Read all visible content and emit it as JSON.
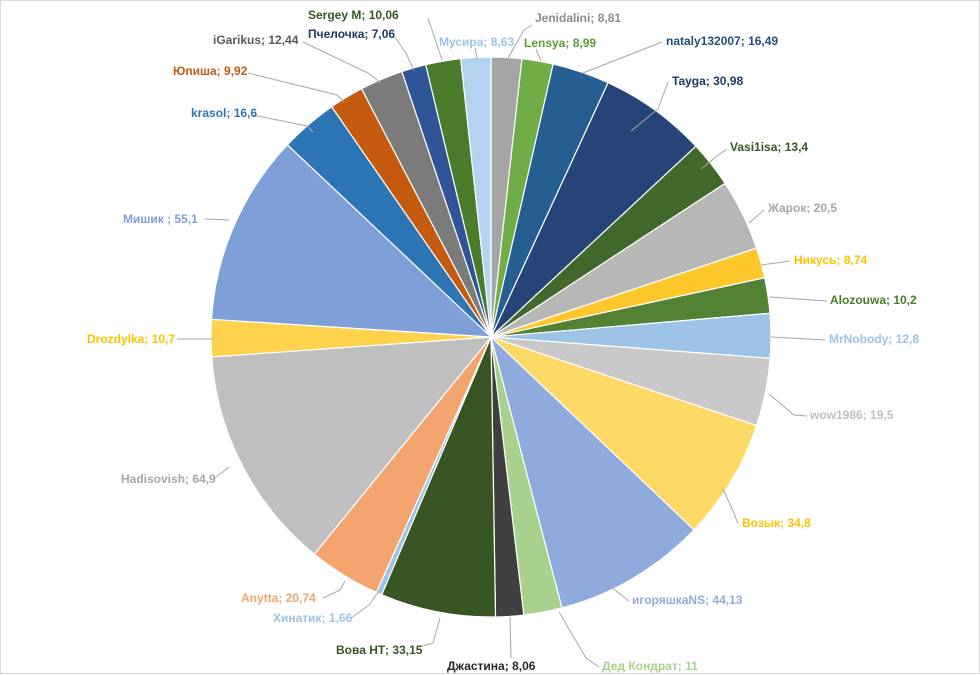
{
  "chart_data": {
    "type": "pie",
    "title": "",
    "start_angle_deg": 0,
    "direction": "clockwise",
    "slices": [
      {
        "name": "Jenidalini",
        "value": 8.81,
        "label": "8,81",
        "color": "#a5a5a5"
      },
      {
        "name": "Lensya",
        "value": 8.99,
        "label": "8,99",
        "color": "#70ad47"
      },
      {
        "name": "nataly132007",
        "value": 16.49,
        "label": "16,49",
        "color": "#255e91"
      },
      {
        "name": "Tayga",
        "value": 30.98,
        "label": "30,98",
        "color": "#264478"
      },
      {
        "name": "Vasi1isa",
        "value": 13.4,
        "label": "13,4",
        "color": "#43682b"
      },
      {
        "name": "Жарок",
        "value": 20.5,
        "label": "20,5",
        "color": "#b7b7b7"
      },
      {
        "name": "Никусь",
        "value": 8.74,
        "label": "8,74",
        "color": "#ffc72c"
      },
      {
        "name": "Alozouwa",
        "value": 10.2,
        "label": "10,2",
        "color": "#548235"
      },
      {
        "name": "MrNobody",
        "value": 12.8,
        "label": "12,8",
        "color": "#9dc3e6"
      },
      {
        "name": "wow1986",
        "value": 19.5,
        "label": "19,5",
        "color": "#c9c9c9"
      },
      {
        "name": "Возык",
        "value": 34.8,
        "label": "34,8",
        "color": "#ffd966"
      },
      {
        "name": "игоряшкаNS",
        "value": 44.13,
        "label": "44,13",
        "color": "#8faadc"
      },
      {
        "name": "Дед Кондрат",
        "value": 11,
        "label": "11",
        "color": "#a9d18e"
      },
      {
        "name": "Джастина",
        "value": 8.06,
        "label": "8,06",
        "color": "#404040"
      },
      {
        "name": "Вова НТ",
        "value": 33.15,
        "label": "33,15",
        "color": "#375623"
      },
      {
        "name": "Хинатик",
        "value": 1.66,
        "label": "1,66",
        "color": "#9dc3e6"
      },
      {
        "name": "Anytta",
        "value": 20.74,
        "label": "20,74",
        "color": "#f4a46e"
      },
      {
        "name": "Hadisovish",
        "value": 64.9,
        "label": "64,9",
        "color": "#bfbfbf"
      },
      {
        "name": "Drozdylka",
        "value": 10.7,
        "label": "10,7",
        "color": "#ffd24d"
      },
      {
        "name": "Мишик ",
        "value": 55.1,
        "label": "55,1",
        "color": "#7f9fd9"
      },
      {
        "name": "krasol",
        "value": 16.6,
        "label": "16,6",
        "color": "#2e75b6"
      },
      {
        "name": "Юпиша",
        "value": 9.92,
        "label": "9,92",
        "color": "#c55a11"
      },
      {
        "name": "iGarikus",
        "value": 12.44,
        "label": "12,44",
        "color": "#7b7b7b"
      },
      {
        "name": "Пчелочка",
        "value": 7.06,
        "label": "7,06",
        "color": "#2f5597"
      },
      {
        "name": "Sergey M",
        "value": 10.06,
        "label": "10,06",
        "color": "#4a7c2c"
      },
      {
        "name": "Мусира",
        "value": 8.63,
        "label": "8,63",
        "color": "#b4d3ef"
      }
    ],
    "label_colors": {
      "Jenidalini": "#8c8c8c",
      "Lensya": "#5e9a3a",
      "nataly132007": "#1f4e79",
      "Tayga": "#1f3864",
      "Vasi1isa": "#375623",
      "Жарок": "#a6a6a6",
      "Никусь": "#ffc000",
      "Alozouwa": "#4a7c2c",
      "MrNobody": "#9dc3e6",
      "wow1986": "#bfbfbf",
      "Возык": "#ffc000",
      "игоряшкаNS": "#8faadc",
      "Дед Кондрат": "#a9d18e",
      "Джастина": "#262626",
      "Вова НТ": "#375623",
      "Хинатик": "#9dc3e6",
      "Anytta": "#f4a46e",
      "Hadisovish": "#a6a6a6",
      "Drozdylka": "#ffc000",
      "Мишик ": "#7f9fd9",
      "krasol": "#2e75b6",
      "Юпиша": "#c55a11",
      "iGarikus": "#595959",
      "Пчелочка": "#203864",
      "Sergey M": "#375623",
      "Мусира": "#9dc3e6"
    },
    "separator": "; "
  }
}
